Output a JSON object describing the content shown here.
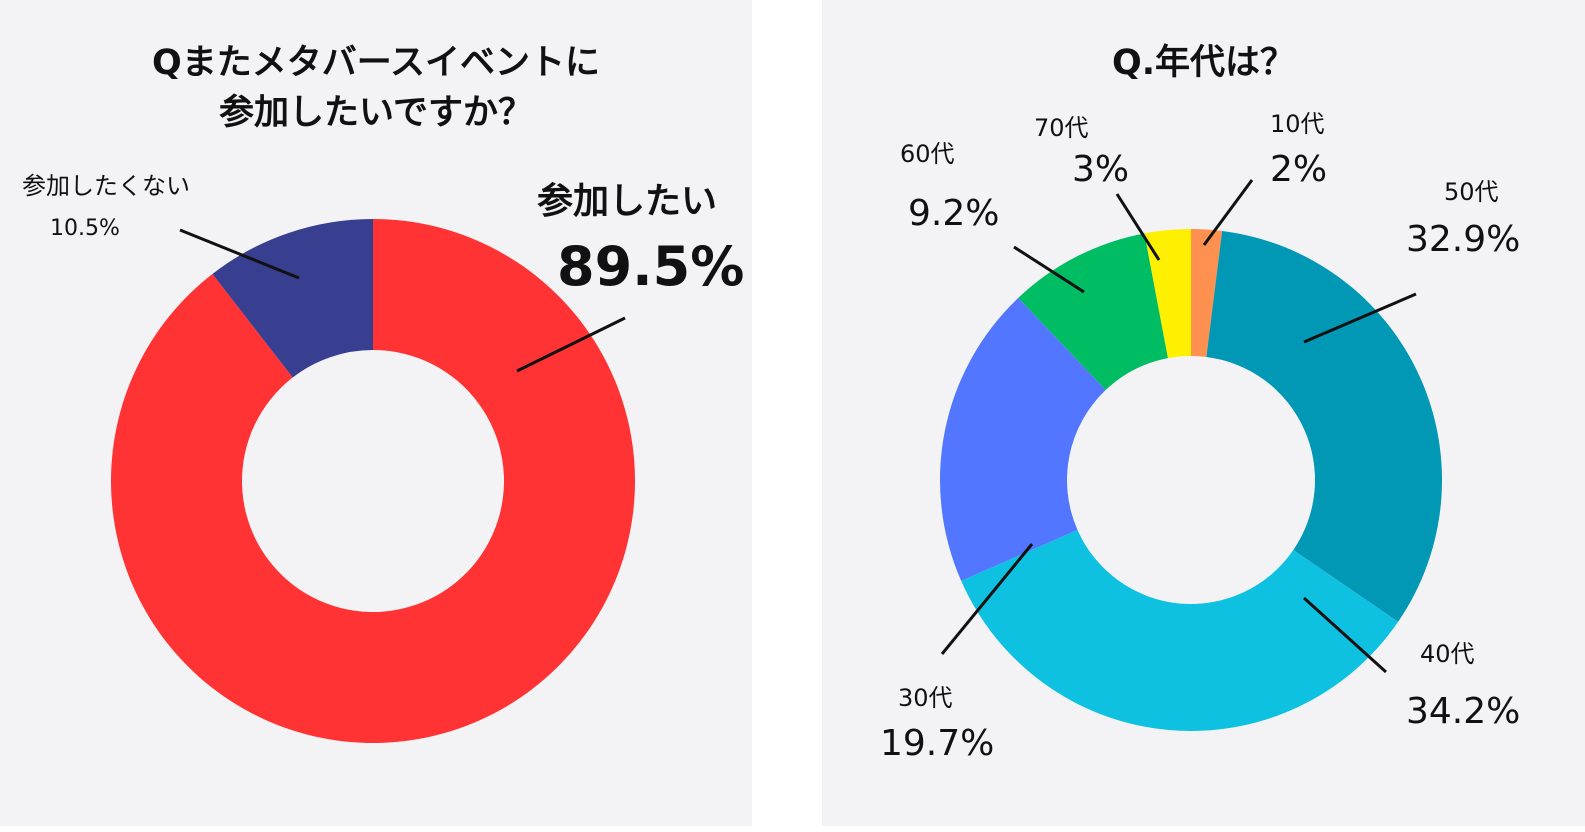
{
  "chart_data": [
    {
      "type": "pie",
      "variant": "donut",
      "title_lines": [
        "Qまたメタバースイベントに",
        "参加したいですか？"
      ],
      "slices": [
        {
          "label": "参加したい",
          "value": 89.5,
          "display": "89.5%",
          "color": "#ff3333"
        },
        {
          "label": "参加したくない",
          "value": 10.5,
          "display": "10.5%",
          "color": "#393f90"
        }
      ]
    },
    {
      "type": "pie",
      "variant": "donut",
      "title": "Q.年代は？",
      "slices": [
        {
          "label": "10代",
          "value": 2,
          "display": "2%",
          "color": "#ff9150"
        },
        {
          "label": "50代",
          "value": 32.9,
          "display": "32.9%",
          "color": "#0098b5"
        },
        {
          "label": "40代",
          "value": 34.2,
          "display": "34.2%",
          "color": "#0ec1e1"
        },
        {
          "label": "30代",
          "value": 19.7,
          "display": "19.7%",
          "color": "#5276ff"
        },
        {
          "label": "60代",
          "value": 9.2,
          "display": "9.2%",
          "color": "#00bd63"
        },
        {
          "label": "70代",
          "value": 3,
          "display": "3%",
          "color": "#fff000"
        }
      ]
    }
  ]
}
